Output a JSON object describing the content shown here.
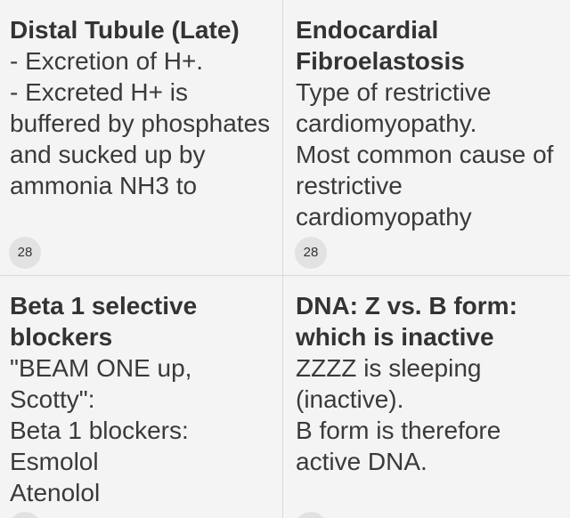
{
  "cards": [
    {
      "title": "Distal Tubule (Late)",
      "body": "- Excretion of H+.\n- Excreted H+ is buffered by phosphates and sucked up by ammonia NH3 to",
      "count": "28"
    },
    {
      "title": "Endocardial Fibroelastosis",
      "body": "Type of restrictive cardiomyopathy.\nMost common cause of restrictive cardiomyopathy",
      "count": "28"
    },
    {
      "title": "Beta 1 selective blockers",
      "body": "\"BEAM ONE up, Scotty\":\nBeta 1 blockers:\nEsmolol\nAtenolol",
      "count": ""
    },
    {
      "title": "DNA: Z vs. B form: which is inactive",
      "body": "ZZZZ is sleeping (inactive).\nB form is therefore active DNA.",
      "count": ""
    }
  ]
}
